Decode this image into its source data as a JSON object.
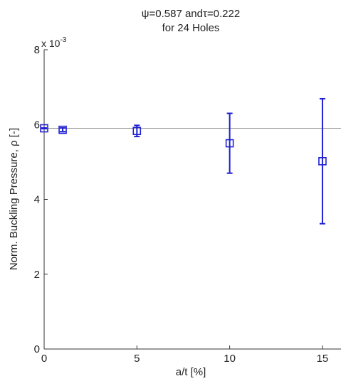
{
  "chart_data": {
    "type": "scatter",
    "title_lines": [
      "ψ=0.587 andτ=0.222",
      "for 24 Holes"
    ],
    "xlabel": "a/t [%]",
    "ylabel": "Norm. Buckling Pressure, ρ [-]",
    "y_exponent_prefix": "x 10",
    "y_exponent_power": "-3",
    "xlim": [
      0,
      16
    ],
    "ylim": [
      0,
      8
    ],
    "x_ticks": [
      0,
      5,
      10,
      15
    ],
    "y_ticks": [
      0,
      2,
      4,
      6,
      8
    ],
    "reference_line_y": 5.9,
    "grid": false,
    "series": [
      {
        "points": [
          {
            "x": 0,
            "y": 5.9,
            "err_low": 0.01,
            "err_high": 0.01
          },
          {
            "x": 1,
            "y": 5.86,
            "err_low": 0.05,
            "err_high": 0.05
          },
          {
            "x": 5,
            "y": 5.83,
            "err_low": 0.15,
            "err_high": 0.15
          },
          {
            "x": 10,
            "y": 5.5,
            "err_low": 0.8,
            "err_high": 0.8
          },
          {
            "x": 15,
            "y": 5.02,
            "err_low": 1.67,
            "err_high": 1.67
          }
        ]
      }
    ],
    "colors": {
      "series": "#1f1fd4",
      "axis": "#333333",
      "reference_line": "#9a9a9a"
    }
  }
}
